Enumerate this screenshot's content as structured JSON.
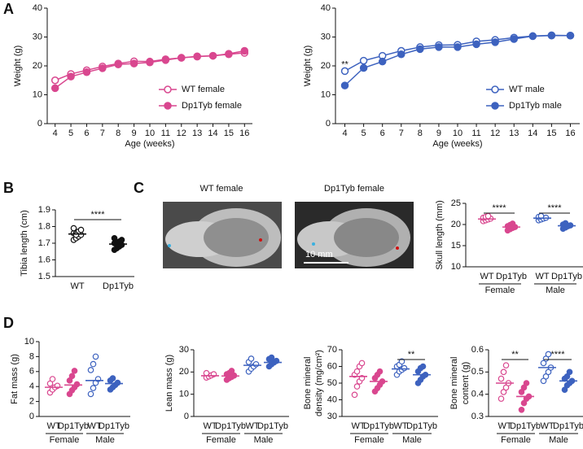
{
  "panel_labels": [
    "A",
    "B",
    "C",
    "D"
  ],
  "images": {
    "titles": [
      "WT female",
      "Dp1Tyb female"
    ],
    "scale_bar": "10 mm"
  },
  "chart_data": [
    {
      "type": "line",
      "xlabel": "Age (weeks)",
      "ylabel": "Weight (g)",
      "x": [
        4,
        5,
        6,
        7,
        8,
        9,
        10,
        11,
        12,
        13,
        14,
        15,
        16
      ],
      "xlim": [
        3.5,
        16.5
      ],
      "xticks": [
        4,
        5,
        6,
        7,
        8,
        9,
        10,
        11,
        12,
        13,
        14,
        15,
        16
      ],
      "ylim": [
        0,
        40
      ],
      "yticks": [
        0,
        10,
        20,
        30,
        40
      ],
      "legend": "lower right",
      "series": [
        {
          "name": "WT female",
          "color": "#d9478f",
          "filled": false,
          "values": [
            15,
            17.2,
            18.5,
            19.8,
            20.8,
            21.6,
            21.5,
            22.3,
            22.8,
            23.2,
            23.5,
            24,
            24.5
          ]
        },
        {
          "name": "Dp1Tyb female",
          "color": "#d9478f",
          "filled": true,
          "values": [
            12.3,
            16.3,
            17.8,
            19.2,
            20.5,
            20.8,
            21.2,
            22,
            22.8,
            23.3,
            23.5,
            24.2,
            25.2
          ]
        }
      ]
    },
    {
      "type": "line",
      "xlabel": "Age (weeks)",
      "ylabel": "Weight (g)",
      "x": [
        4,
        5,
        6,
        7,
        8,
        9,
        10,
        11,
        12,
        13,
        14,
        15,
        16
      ],
      "xlim": [
        3.5,
        16.5
      ],
      "xticks": [
        4,
        5,
        6,
        7,
        8,
        9,
        10,
        11,
        12,
        13,
        14,
        15,
        16
      ],
      "ylim": [
        0,
        40
      ],
      "yticks": [
        0,
        10,
        20,
        30,
        40
      ],
      "legend": "lower right",
      "annotations": [
        {
          "text": "**",
          "x": 4
        }
      ],
      "series": [
        {
          "name": "WT male",
          "color": "#3d62bf",
          "filled": false,
          "values": [
            18.2,
            21.8,
            23.5,
            25.2,
            26.5,
            27.2,
            27.3,
            28.5,
            29,
            29.8,
            30.3,
            30.6,
            30.5
          ]
        },
        {
          "name": "Dp1Tyb male",
          "color": "#3d62bf",
          "filled": true,
          "values": [
            13.2,
            19.3,
            21.5,
            24,
            25.8,
            26.5,
            26.5,
            27.5,
            28.2,
            29.3,
            30.3,
            30.5,
            30.5
          ]
        }
      ]
    },
    {
      "type": "strip",
      "ylabel": [
        "Tibia length (cm)"
      ],
      "categories": [
        "WT",
        "Dp1Tyb"
      ],
      "colors": [
        "#111111",
        "#111111"
      ],
      "filled": [
        false,
        true
      ],
      "ylim": [
        1.5,
        1.9
      ],
      "yticks": [
        1.5,
        1.6,
        1.7,
        1.8,
        1.9
      ],
      "means": [
        1.755,
        1.695
      ],
      "significance": [
        "****"
      ],
      "points": [
        [
          1.72,
          1.73,
          1.74,
          1.75,
          1.76,
          1.76,
          1.77,
          1.78,
          1.79,
          1.75
        ],
        [
          1.66,
          1.67,
          1.68,
          1.69,
          1.7,
          1.7,
          1.71,
          1.72,
          1.73,
          1.69
        ]
      ]
    },
    {
      "type": "strip",
      "ylabel": [
        "Skull length (mm)"
      ],
      "categories": [
        "WT",
        "Dp1Tyb",
        "WT",
        "Dp1Tyb"
      ],
      "group_labels": [
        "Female",
        "Male"
      ],
      "colors": [
        "#d9478f",
        "#d9478f",
        "#3d62bf",
        "#3d62bf"
      ],
      "filled": [
        false,
        true,
        false,
        true
      ],
      "ylim": [
        10,
        25
      ],
      "yticks": [
        10,
        15,
        20,
        25
      ],
      "means": [
        21.3,
        19.4,
        21.5,
        19.7
      ],
      "significance": [
        "****",
        "****"
      ],
      "points": [
        [
          20.8,
          21,
          21.2,
          21.4,
          21.6,
          21.8,
          22
        ],
        [
          18.6,
          18.9,
          19.2,
          19.4,
          19.6,
          19.9,
          20.2
        ],
        [
          21,
          21.2,
          21.4,
          21.6,
          21.8,
          22
        ],
        [
          19,
          19.3,
          19.6,
          19.8,
          20,
          20.3
        ]
      ]
    },
    {
      "type": "strip",
      "ylabel": [
        "Fat mass (g)"
      ],
      "categories": [
        "WT",
        "Dp1Tyb",
        "WT",
        "Dp1Tyb"
      ],
      "group_labels": [
        "Female",
        "Male"
      ],
      "colors": [
        "#d9478f",
        "#d9478f",
        "#3d62bf",
        "#3d62bf"
      ],
      "filled": [
        false,
        true,
        false,
        true
      ],
      "ylim": [
        0,
        10
      ],
      "yticks": [
        0,
        2,
        4,
        6,
        8,
        10
      ],
      "means": [
        3.9,
        4.2,
        4.8,
        4.4
      ],
      "significance": [
        null,
        null
      ],
      "points": [
        [
          3.2,
          3.6,
          3.9,
          4.1,
          4.4,
          5
        ],
        [
          3,
          3.5,
          3.9,
          4.3,
          4.8,
          5.4,
          6.1
        ],
        [
          3,
          3.8,
          4.5,
          5,
          6.2,
          7,
          8
        ],
        [
          3.6,
          3.9,
          4.2,
          4.5,
          4.8,
          5.1
        ]
      ]
    },
    {
      "type": "strip",
      "ylabel": [
        "Lean mass (g)"
      ],
      "categories": [
        "WT",
        "Dp1Tyb",
        "WT",
        "Dp1Tyb"
      ],
      "group_labels": [
        "Female",
        "Male"
      ],
      "colors": [
        "#d9478f",
        "#d9478f",
        "#3d62bf",
        "#3d62bf"
      ],
      "filled": [
        false,
        true,
        false,
        true
      ],
      "ylim": [
        0,
        30
      ],
      "yticks": [
        0,
        10,
        20,
        30
      ],
      "means": [
        18.3,
        18.2,
        23,
        24.3
      ],
      "significance": [
        null,
        null
      ],
      "points": [
        [
          17.5,
          18,
          18.5,
          19,
          19.5
        ],
        [
          16.5,
          17.2,
          17.8,
          18.4,
          19,
          19.5,
          20.5
        ],
        [
          20.2,
          21.5,
          22.5,
          23.5,
          24.5,
          26
        ],
        [
          22.5,
          23.5,
          24.3,
          25,
          25.8,
          26.5
        ]
      ]
    },
    {
      "type": "strip",
      "ylabel": [
        "Bone mineral",
        "density (mg/cm²)"
      ],
      "categories": [
        "WT",
        "Dp1Tyb",
        "WT",
        "Dp1Tyb"
      ],
      "group_labels": [
        "Female",
        "Male"
      ],
      "colors": [
        "#d9478f",
        "#d9478f",
        "#3d62bf",
        "#3d62bf"
      ],
      "filled": [
        false,
        true,
        false,
        true
      ],
      "ylim": [
        30,
        70
      ],
      "yticks": [
        30,
        40,
        50,
        60,
        70
      ],
      "means": [
        54,
        51,
        58.5,
        55
      ],
      "significance": [
        null,
        "**"
      ],
      "points": [
        [
          43,
          48,
          51,
          53,
          55,
          57,
          60,
          62
        ],
        [
          45,
          47,
          49,
          51,
          53,
          55,
          57
        ],
        [
          55,
          57,
          58,
          59,
          60,
          61,
          63
        ],
        [
          50,
          52,
          54,
          55,
          57,
          59,
          60
        ]
      ]
    },
    {
      "type": "strip",
      "ylabel": [
        "Bone mineral",
        "content (g)"
      ],
      "categories": [
        "WT",
        "Dp1Tyb",
        "WT",
        "Dp1Tyb"
      ],
      "group_labels": [
        "Female",
        "Male"
      ],
      "colors": [
        "#d9478f",
        "#d9478f",
        "#3d62bf",
        "#3d62bf"
      ],
      "filled": [
        false,
        true,
        false,
        true
      ],
      "ylim": [
        0.3,
        0.6
      ],
      "yticks": [
        0.3,
        0.4,
        0.5,
        0.6
      ],
      "means": [
        0.45,
        0.39,
        0.52,
        0.46
      ],
      "significance": [
        "**",
        "****"
      ],
      "points": [
        [
          0.38,
          0.41,
          0.43,
          0.45,
          0.47,
          0.5,
          0.53
        ],
        [
          0.33,
          0.36,
          0.38,
          0.39,
          0.41,
          0.43,
          0.45
        ],
        [
          0.46,
          0.48,
          0.5,
          0.52,
          0.54,
          0.56,
          0.58
        ],
        [
          0.42,
          0.44,
          0.45,
          0.46,
          0.47,
          0.48,
          0.5
        ]
      ]
    }
  ]
}
